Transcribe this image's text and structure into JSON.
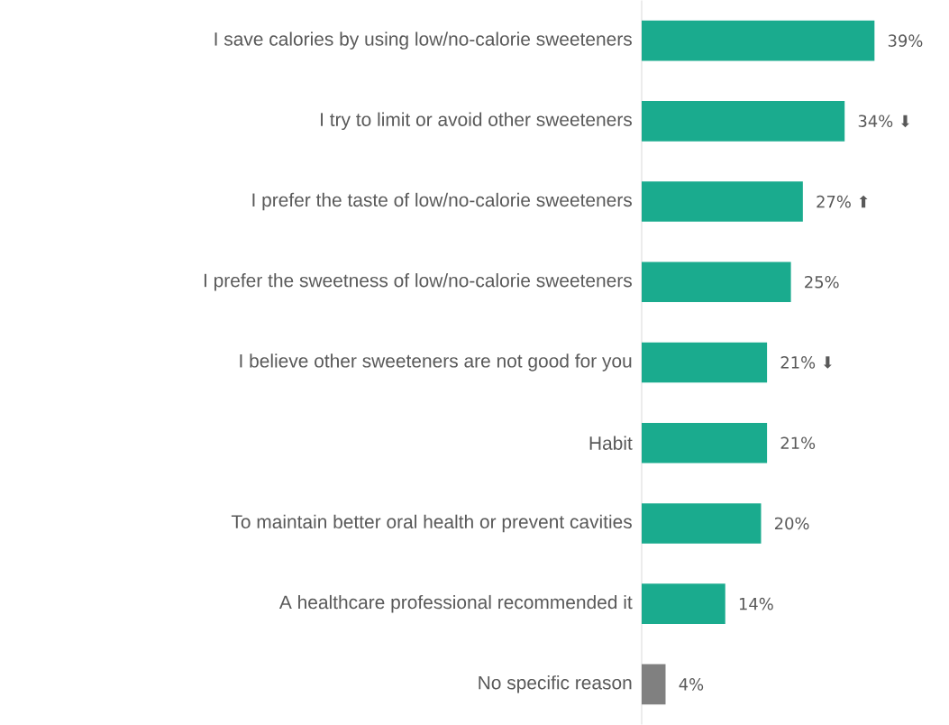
{
  "chart_data": {
    "type": "bar",
    "orientation": "horizontal",
    "categories": [
      "I save calories by using low/no-calorie sweeteners",
      "I try to limit or avoid other sweeteners",
      "I prefer the taste of low/no-calorie sweeteners",
      "I prefer the sweetness of low/no-calorie sweeteners",
      "I believe other sweeteners are not good for you",
      "Habit",
      "To maintain better oral health or prevent cavities",
      "A healthcare professional recommended it",
      "No specific reason"
    ],
    "values": [
      39,
      34,
      27,
      25,
      21,
      21,
      20,
      14,
      4
    ],
    "colors": [
      "#1aab8e",
      "#1aab8e",
      "#1aab8e",
      "#1aab8e",
      "#1aab8e",
      "#1aab8e",
      "#1aab8e",
      "#1aab8e",
      "#808080"
    ],
    "value_labels": [
      "39%",
      "34% ⬇",
      "27% ⬆",
      "25%",
      "21% ⬇",
      "21%",
      "20%",
      "14%",
      "4%"
    ]
  }
}
